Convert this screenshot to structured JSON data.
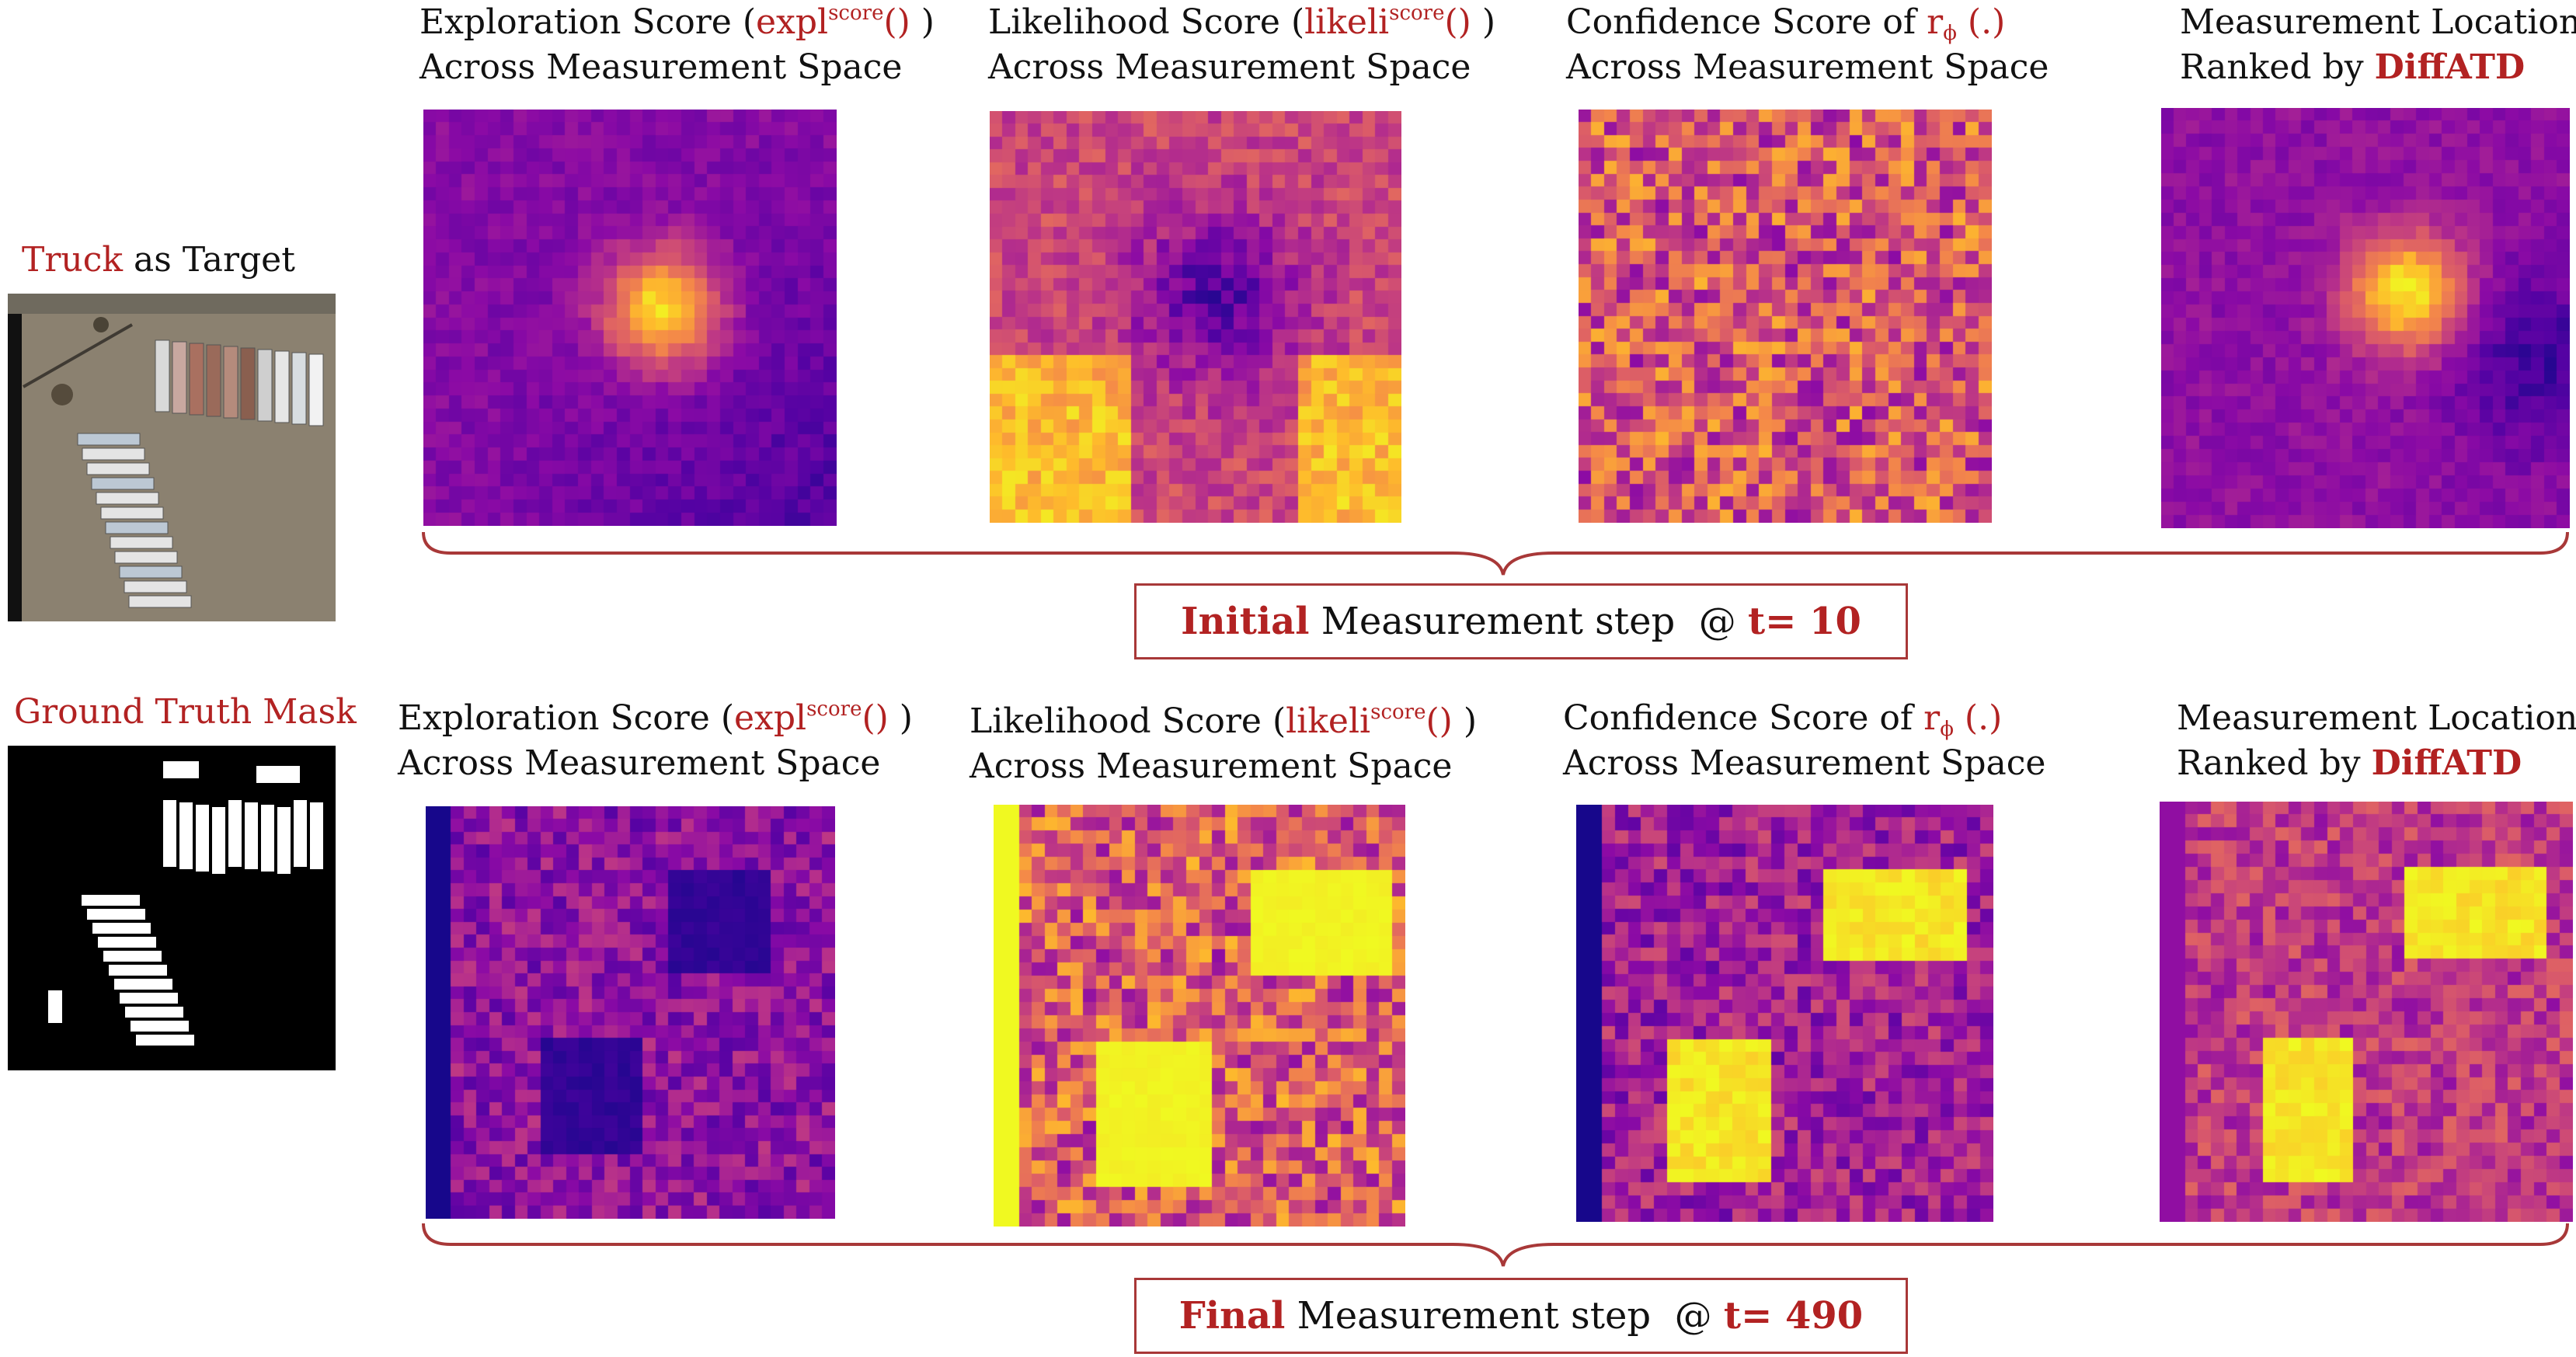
{
  "left_panel": {
    "target_label": {
      "highlight": "Truck",
      "rest": " as Target"
    },
    "mask_label": "Ground Truth Mask"
  },
  "captions": {
    "exploration": {
      "line1_prefix": "Exploration Score (",
      "fn": "expl",
      "sup": "score",
      "fn_tail": "()",
      "line1_suffix": " )",
      "line2": "Across Measurement Space"
    },
    "likelihood": {
      "line1_prefix": "Likelihood Score (",
      "fn": "likeli",
      "sup": "score",
      "fn_tail": "()",
      "line1_suffix": " )",
      "line2": "Across Measurement Space"
    },
    "confidence": {
      "line1_prefix": "Confidence Score of ",
      "fn": "r",
      "sub": "ϕ",
      "fn_tail": " (.)",
      "line2": "Across Measurement Space"
    },
    "ranked": {
      "line1": "Measurement Location",
      "line2_prefix": "Ranked by ",
      "line2_method": "DiffATD"
    }
  },
  "steps": {
    "initial": {
      "word": "Initial",
      "middle": " Measurement step  @ ",
      "time": "t= 10"
    },
    "final": {
      "word": "Final",
      "middle": " Measurement step  @ ",
      "time": "t= 490"
    }
  },
  "colors": {
    "accent": "#b22222",
    "box_border": "#a83838",
    "colormap": "plasma"
  },
  "icons": {
    "satellite": "aerial-truck-image",
    "mask": "ground-truth-mask-image"
  }
}
